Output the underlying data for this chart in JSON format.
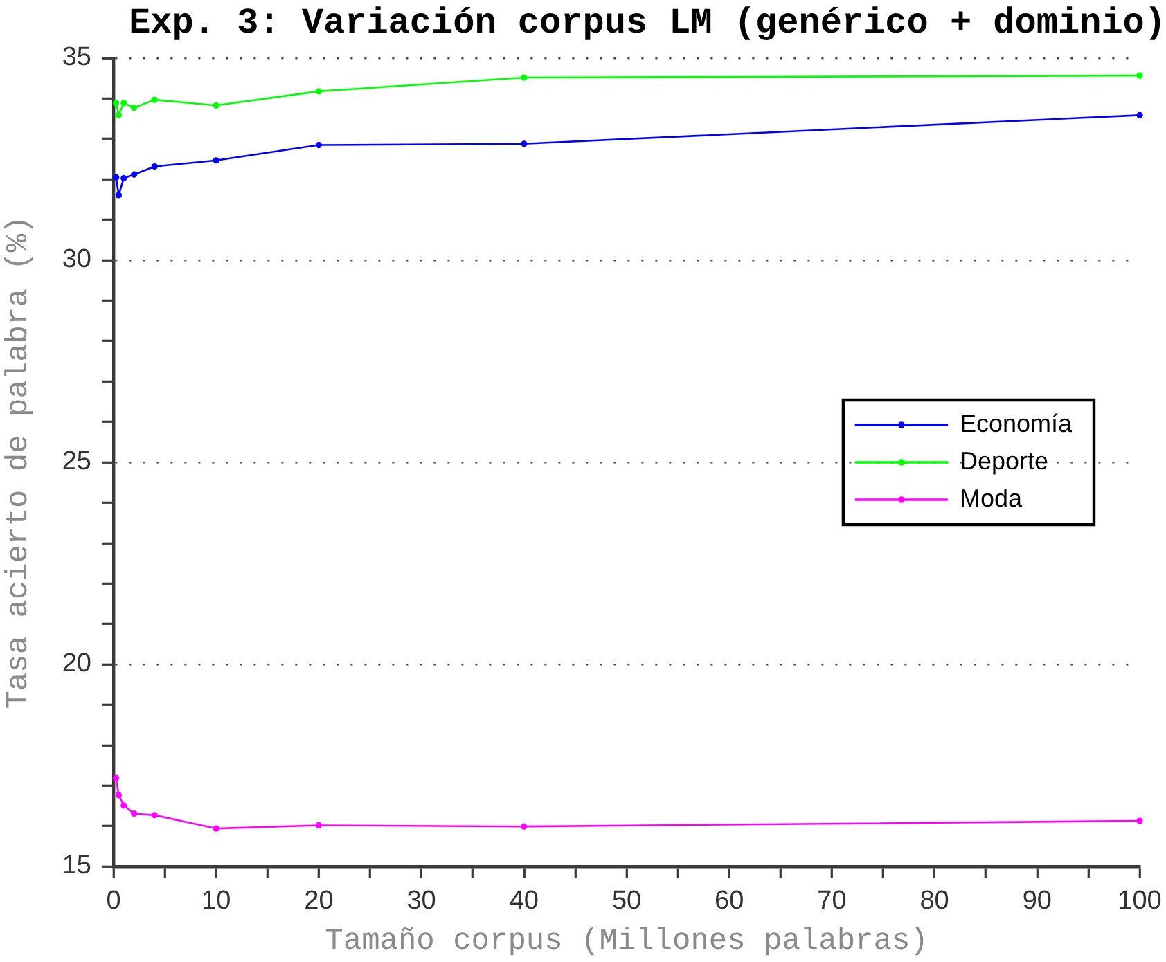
{
  "chart_data": {
    "type": "line",
    "title": "Exp. 3: Variación corpus LM (genérico + dominio)",
    "xlabel": "Tamaño corpus (Millones palabras)",
    "ylabel": "Tasa acierto de palabra (%)",
    "x": [
      0.25,
      0.5,
      1,
      2,
      4,
      10,
      20,
      40,
      100
    ],
    "series": [
      {
        "name": "Economía",
        "color": "#0000ff",
        "values": [
          32.05,
          31.61,
          32.03,
          32.12,
          32.32,
          32.47,
          32.85,
          32.88,
          33.59
        ]
      },
      {
        "name": "Deporte",
        "color": "#00ff00",
        "values": [
          33.89,
          33.59,
          33.89,
          33.77,
          33.97,
          33.83,
          34.18,
          34.52,
          34.57
        ]
      },
      {
        "name": "Moda",
        "color": "#ff00ff",
        "values": [
          17.19,
          16.77,
          16.51,
          16.31,
          16.27,
          15.94,
          16.02,
          15.99,
          16.13
        ]
      }
    ],
    "xlim": [
      0,
      100
    ],
    "ylim": [
      15,
      35
    ],
    "xticks": [
      0,
      {
        "value": 5,
        "label": null
      },
      10,
      {
        "value": 15,
        "label": null
      },
      20,
      {
        "value": 25,
        "label": null
      },
      30,
      {
        "value": 35,
        "label": null
      },
      40,
      {
        "value": 45,
        "label": null
      },
      50,
      {
        "value": 55,
        "label": null
      },
      60,
      {
        "value": 65,
        "label": null
      },
      70,
      {
        "value": 75,
        "label": null
      },
      80,
      {
        "value": 85,
        "label": null
      },
      90,
      {
        "value": 95,
        "label": null
      },
      100
    ],
    "yticks": [
      15,
      {
        "value": 16,
        "label": null
      },
      {
        "value": 17,
        "label": null
      },
      {
        "value": 18,
        "label": null
      },
      {
        "value": 19,
        "label": null
      },
      20,
      {
        "value": 21,
        "label": null
      },
      {
        "value": 22,
        "label": null
      },
      {
        "value": 23,
        "label": null
      },
      {
        "value": 24,
        "label": null
      },
      25,
      {
        "value": 26,
        "label": null
      },
      {
        "value": 27,
        "label": null
      },
      {
        "value": 28,
        "label": null
      },
      {
        "value": 29,
        "label": null
      },
      30,
      {
        "value": 31,
        "label": null
      },
      {
        "value": 32,
        "label": null
      },
      {
        "value": 33,
        "label": null
      },
      {
        "value": 34,
        "label": null
      },
      35
    ],
    "grid": "y",
    "legend": "right",
    "marker": "circle",
    "line_style": "solid"
  }
}
